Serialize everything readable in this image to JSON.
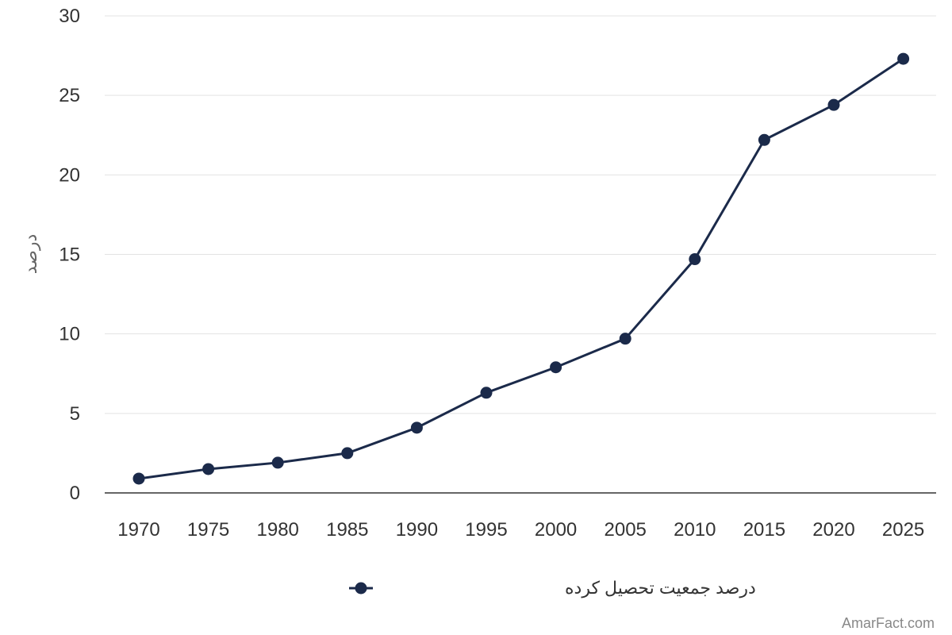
{
  "chart_data": {
    "type": "line",
    "x": [
      "1970",
      "1975",
      "1980",
      "1985",
      "1990",
      "1995",
      "2000",
      "2005",
      "2010",
      "2015",
      "2020",
      "2025"
    ],
    "series": [
      {
        "name": "درصد جمعیت تحصیل کرده",
        "values": [
          0.9,
          1.5,
          1.9,
          2.5,
          4.1,
          6.3,
          7.9,
          9.7,
          14.7,
          22.2,
          24.4,
          27.3
        ],
        "color": "#1b2a4a"
      }
    ],
    "title": "",
    "xlabel": "",
    "ylabel": "درصد",
    "ylim": [
      0,
      30
    ],
    "y_ticks": [
      "0",
      "5",
      "10",
      "15",
      "20",
      "25",
      "30"
    ],
    "grid": true,
    "legend_position": "bottom-center"
  },
  "watermark": "AmarFact.com",
  "colors": {
    "series": "#1b2a4a",
    "grid": "#e3e3e3",
    "axis": "#333333"
  }
}
